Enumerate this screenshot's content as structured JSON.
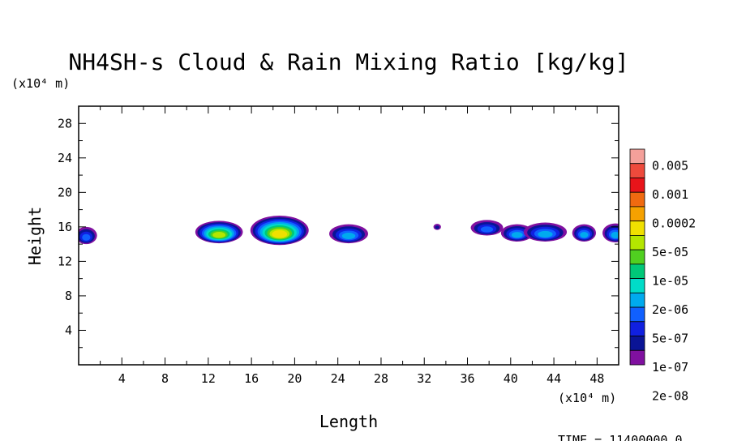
{
  "chart_data": {
    "type": "heatmap",
    "title": "NH4SH-s Cloud & Rain Mixing Ratio [kg/kg]",
    "xlabel": "Length",
    "ylabel": "Height",
    "x_unit": "(x10⁴ m)",
    "y_unit": "(x10⁴ m)",
    "xlim": [
      0,
      50
    ],
    "ylim": [
      0,
      30
    ],
    "x_ticks": [
      "4",
      "8",
      "12",
      "16",
      "20",
      "24",
      "28",
      "32",
      "36",
      "40",
      "44",
      "48"
    ],
    "y_ticks": [
      "4",
      "8",
      "12",
      "16",
      "20",
      "24",
      "28"
    ],
    "legend_levels": [
      "0.005",
      "0.001",
      "0.0002",
      "5e-05",
      "1e-05",
      "2e-06",
      "5e-07",
      "1e-07",
      "2e-08"
    ],
    "legend_colors": [
      "#f4a09a",
      "#ee4a3c",
      "#e8141a",
      "#f06a10",
      "#f5a100",
      "#f0e000",
      "#b4e600",
      "#50d020",
      "#00c878",
      "#00dcc8",
      "#00aaee",
      "#1060ff",
      "#1020e0",
      "#0a1496",
      "#8010a0"
    ],
    "clouds": [
      {
        "x": 0.7,
        "y": 15.0,
        "w": 2.0,
        "h": 2.0,
        "peak": 0.78
      },
      {
        "x": 13.0,
        "y": 15.4,
        "w": 4.4,
        "h": 2.6,
        "peak": 0.45
      },
      {
        "x": 18.6,
        "y": 15.6,
        "w": 5.4,
        "h": 3.4,
        "peak": 0.35
      },
      {
        "x": 25.0,
        "y": 15.2,
        "w": 3.6,
        "h": 2.2,
        "peak": 0.72
      },
      {
        "x": 33.2,
        "y": 16.0,
        "w": 0.7,
        "h": 0.7,
        "peak": 0.95
      },
      {
        "x": 37.8,
        "y": 15.9,
        "w": 3.0,
        "h": 1.8,
        "peak": 0.8
      },
      {
        "x": 40.6,
        "y": 15.3,
        "w": 3.0,
        "h": 2.0,
        "peak": 0.7
      },
      {
        "x": 43.2,
        "y": 15.4,
        "w": 4.0,
        "h": 2.2,
        "peak": 0.68
      },
      {
        "x": 46.8,
        "y": 15.3,
        "w": 2.2,
        "h": 2.0,
        "peak": 0.74
      },
      {
        "x": 49.7,
        "y": 15.3,
        "w": 2.4,
        "h": 2.2,
        "peak": 0.7
      }
    ],
    "time_label": "TIME = 11400000.0"
  }
}
